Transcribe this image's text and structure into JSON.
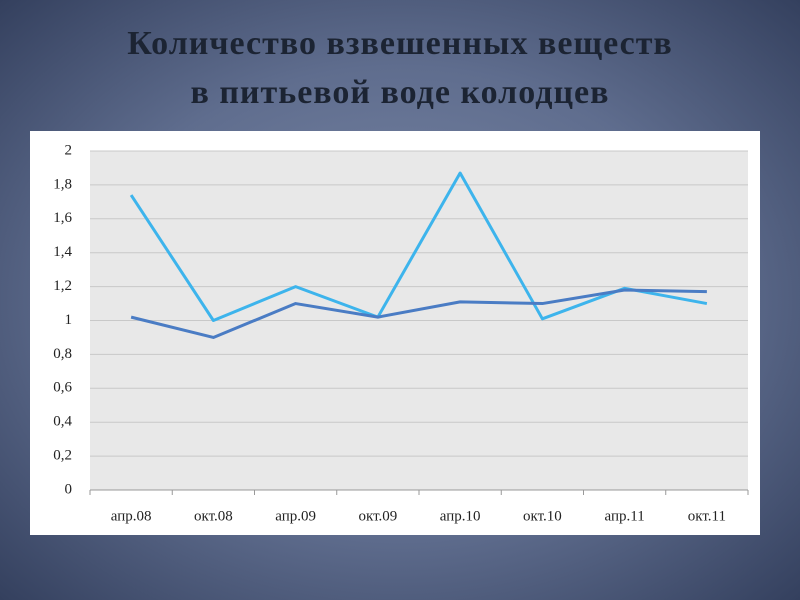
{
  "chart_data": {
    "type": "line",
    "title": [
      "Количество взвешенных веществ",
      "в питьевой воде колодцев"
    ],
    "categories": [
      "апр.08",
      "окт.08",
      "апр.09",
      "окт.09",
      "апр.10",
      "окт.10",
      "апр.11",
      "окт.11"
    ],
    "series": [
      {
        "color": "#3db4ec",
        "values": [
          1.74,
          1.0,
          1.2,
          1.02,
          1.87,
          1.01,
          1.19,
          1.1
        ]
      },
      {
        "color": "#4a7cc4",
        "values": [
          1.02,
          0.9,
          1.1,
          1.02,
          1.11,
          1.1,
          1.18,
          1.17
        ]
      }
    ],
    "ylim": [
      0,
      2
    ],
    "yticks": [
      0,
      {
        "value": 0.2,
        "label": "0,2"
      },
      {
        "value": 0.4,
        "label": "0,4"
      },
      {
        "value": 0.6,
        "label": "0,6"
      },
      {
        "value": 0.8,
        "label": "0,8"
      },
      1,
      {
        "value": 1.2,
        "label": "1,2"
      },
      {
        "value": 1.4,
        "label": "1,4"
      },
      {
        "value": 1.6,
        "label": "1,6"
      },
      {
        "value": 1.8,
        "label": "1,8"
      },
      2
    ],
    "grid": true
  }
}
